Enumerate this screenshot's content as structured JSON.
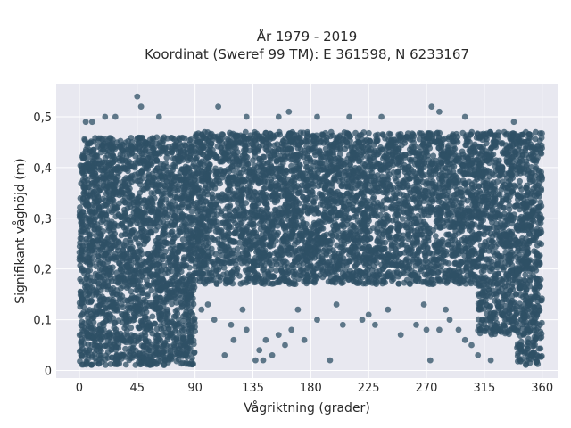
{
  "chart_data": {
    "type": "scatter",
    "title": "År 1979 - 2019",
    "subtitle": "Koordinat (Sweref 99 TM): E 361598, N 6233167",
    "xlabel": "Vågriktning (grader)",
    "ylabel": "Signifikant våghöjd (m)",
    "xlim": [
      -18,
      372
    ],
    "ylim": [
      -0.015,
      0.565
    ],
    "xticks": [
      "0",
      "45",
      "90",
      "135",
      "180",
      "225",
      "270",
      "315",
      "360"
    ],
    "yticks": [
      "0",
      "0,1",
      "0,2",
      "0,3",
      "0,4",
      "0,5"
    ],
    "grid": true,
    "marker_color": "#2f5066",
    "background_color": "#e8e8f0",
    "density_bands": [
      {
        "x": [
          0,
          90
        ],
        "y": [
          0.01,
          0.46
        ]
      },
      {
        "x": [
          90,
          310
        ],
        "y": [
          0.17,
          0.47
        ]
      },
      {
        "x": [
          310,
          340
        ],
        "y": [
          0.07,
          0.47
        ]
      },
      {
        "x": [
          340,
          360
        ],
        "y": [
          0.01,
          0.47
        ]
      }
    ],
    "scattered_points": [
      {
        "x": 45,
        "y": 0.54
      },
      {
        "x": 48,
        "y": 0.52
      },
      {
        "x": 108,
        "y": 0.52
      },
      {
        "x": 163,
        "y": 0.51
      },
      {
        "x": 155,
        "y": 0.5
      },
      {
        "x": 185,
        "y": 0.5
      },
      {
        "x": 274,
        "y": 0.52
      },
      {
        "x": 280,
        "y": 0.51
      },
      {
        "x": 300,
        "y": 0.5
      },
      {
        "x": 338,
        "y": 0.49
      },
      {
        "x": 20,
        "y": 0.5
      },
      {
        "x": 5,
        "y": 0.49
      },
      {
        "x": 10,
        "y": 0.49
      },
      {
        "x": 28,
        "y": 0.5
      },
      {
        "x": 62,
        "y": 0.5
      },
      {
        "x": 130,
        "y": 0.5
      },
      {
        "x": 235,
        "y": 0.5
      },
      {
        "x": 210,
        "y": 0.5
      },
      {
        "x": 105,
        "y": 0.1
      },
      {
        "x": 118,
        "y": 0.09
      },
      {
        "x": 120,
        "y": 0.06
      },
      {
        "x": 130,
        "y": 0.08
      },
      {
        "x": 140,
        "y": 0.04
      },
      {
        "x": 145,
        "y": 0.06
      },
      {
        "x": 150,
        "y": 0.03
      },
      {
        "x": 155,
        "y": 0.07
      },
      {
        "x": 160,
        "y": 0.05
      },
      {
        "x": 165,
        "y": 0.08
      },
      {
        "x": 175,
        "y": 0.06
      },
      {
        "x": 185,
        "y": 0.1
      },
      {
        "x": 195,
        "y": 0.02
      },
      {
        "x": 205,
        "y": 0.09
      },
      {
        "x": 220,
        "y": 0.1
      },
      {
        "x": 225,
        "y": 0.11
      },
      {
        "x": 230,
        "y": 0.09
      },
      {
        "x": 250,
        "y": 0.07
      },
      {
        "x": 262,
        "y": 0.09
      },
      {
        "x": 270,
        "y": 0.08
      },
      {
        "x": 273,
        "y": 0.02
      },
      {
        "x": 280,
        "y": 0.08
      },
      {
        "x": 288,
        "y": 0.1
      },
      {
        "x": 295,
        "y": 0.08
      },
      {
        "x": 300,
        "y": 0.06
      },
      {
        "x": 305,
        "y": 0.05
      },
      {
        "x": 310,
        "y": 0.03
      },
      {
        "x": 320,
        "y": 0.02
      },
      {
        "x": 137,
        "y": 0.02
      },
      {
        "x": 143,
        "y": 0.02
      },
      {
        "x": 113,
        "y": 0.03
      },
      {
        "x": 95,
        "y": 0.12
      },
      {
        "x": 100,
        "y": 0.13
      },
      {
        "x": 127,
        "y": 0.12
      },
      {
        "x": 170,
        "y": 0.12
      },
      {
        "x": 200,
        "y": 0.13
      },
      {
        "x": 240,
        "y": 0.12
      },
      {
        "x": 268,
        "y": 0.13
      },
      {
        "x": 285,
        "y": 0.12
      }
    ]
  }
}
